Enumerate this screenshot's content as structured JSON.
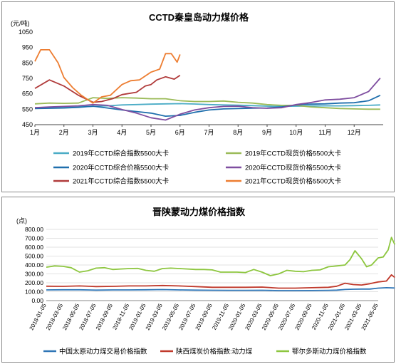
{
  "chart_data": [
    {
      "type": "line",
      "title": "CCTD秦皇岛动力煤价格",
      "ylabel": "(元/吨)",
      "ylim": [
        450,
        1050
      ],
      "yticks": [
        450,
        550,
        650,
        750,
        850,
        950,
        1050
      ],
      "xlim": [
        1,
        13
      ],
      "xticks": [
        {
          "v": 1,
          "label": "1月"
        },
        {
          "v": 2,
          "label": "2月"
        },
        {
          "v": 3,
          "label": "3月"
        },
        {
          "v": 4,
          "label": "4月"
        },
        {
          "v": 5,
          "label": "5月"
        },
        {
          "v": 6,
          "label": "6月"
        },
        {
          "v": 7,
          "label": "7月"
        },
        {
          "v": 8,
          "label": "8月"
        },
        {
          "v": 9,
          "label": "9月"
        },
        {
          "v": 10,
          "label": "10月"
        },
        {
          "v": 11,
          "label": "11月"
        },
        {
          "v": 12,
          "label": "12月"
        }
      ],
      "grid": false,
      "legend": "bottom",
      "series": [
        {
          "name": "2019年CCTD综合指数5500大卡",
          "color": "#4bacc6",
          "x": [
            1,
            1.5,
            2,
            2.5,
            3,
            3.5,
            4,
            4.5,
            5,
            5.5,
            6,
            6.5,
            7,
            7.5,
            8,
            8.5,
            9,
            9.5,
            10,
            10.5,
            11,
            11.5,
            12,
            12.5,
            12.9
          ],
          "y": [
            560,
            562,
            565,
            566,
            568,
            572,
            578,
            580,
            583,
            585,
            586,
            584,
            580,
            578,
            576,
            573,
            570,
            568,
            570,
            571,
            572,
            572,
            573,
            575,
            578
          ]
        },
        {
          "name": "2019年CCTD现货价格5500大卡",
          "color": "#9bbb59",
          "x": [
            1,
            1.5,
            2,
            2.5,
            3,
            3.5,
            4,
            4.5,
            5,
            5.5,
            6,
            6.5,
            7,
            7.5,
            8,
            8.5,
            9,
            9.5,
            10,
            10.5,
            11,
            11.5,
            12,
            12.5,
            12.9
          ],
          "y": [
            585,
            590,
            588,
            590,
            625,
            620,
            625,
            622,
            618,
            618,
            605,
            600,
            600,
            603,
            595,
            590,
            580,
            575,
            575,
            565,
            560,
            555,
            552,
            550,
            550
          ]
        },
        {
          "name": "2020年CCTD综合价格5500大卡",
          "color": "#1f6fad",
          "x": [
            1,
            1.5,
            2,
            2.5,
            3,
            3.5,
            4,
            4.5,
            5,
            5.5,
            6,
            6.5,
            7,
            7.5,
            8,
            8.5,
            9,
            9.5,
            10,
            10.5,
            11,
            11.5,
            12,
            12.5,
            12.9
          ],
          "y": [
            555,
            556,
            558,
            562,
            570,
            558,
            545,
            535,
            525,
            505,
            510,
            530,
            545,
            552,
            555,
            557,
            558,
            565,
            578,
            583,
            585,
            590,
            592,
            605,
            640
          ]
        },
        {
          "name": "2020年CCTD现货价格5500大卡",
          "color": "#7f4ea0",
          "x": [
            1,
            1.5,
            2,
            2.5,
            3,
            3.5,
            4,
            4.5,
            5,
            5.5,
            6,
            6.5,
            7,
            7.5,
            8,
            8.5,
            9,
            9.5,
            10,
            10.5,
            11,
            11.5,
            12,
            12.5,
            12.9
          ],
          "y": [
            560,
            565,
            568,
            572,
            580,
            575,
            548,
            525,
            495,
            480,
            518,
            545,
            560,
            568,
            570,
            560,
            556,
            560,
            580,
            593,
            610,
            615,
            625,
            665,
            752
          ]
        },
        {
          "name": "2021年CCTD综合指数5500大卡",
          "color": "#b03a3a",
          "x": [
            1,
            1.5,
            2,
            2.5,
            3,
            3.3,
            3.7,
            4,
            4.5,
            4.8,
            5,
            5.2,
            5.5,
            5.8,
            6
          ],
          "y": [
            685,
            740,
            700,
            640,
            595,
            600,
            620,
            645,
            660,
            700,
            710,
            740,
            760,
            745,
            770
          ]
        },
        {
          "name": "2021年CCTD现货价格5500大卡",
          "color": "#ed7d31",
          "x": [
            1,
            1.2,
            1.5,
            1.8,
            2,
            2.3,
            2.6,
            3,
            3.3,
            3.6,
            4,
            4.3,
            4.6,
            5,
            5.3,
            5.5,
            5.7,
            5.9,
            6
          ],
          "y": [
            860,
            935,
            935,
            850,
            755,
            690,
            640,
            590,
            630,
            640,
            710,
            735,
            740,
            790,
            810,
            910,
            910,
            855,
            905
          ]
        }
      ]
    },
    {
      "type": "line",
      "title": "晋陕蒙动力煤价格指数",
      "ylabel": "(点)",
      "ylim": [
        0,
        800
      ],
      "yticks": [
        "0.00",
        "100.00",
        "200.00",
        "300.00",
        "400.00",
        "500.00",
        "600.00",
        "700.00",
        "800.00"
      ],
      "categories": [
        "2018-01-05",
        "2018-03-05",
        "2018-05-05",
        "2018-07-05",
        "2018-09-05",
        "2018-11-05",
        "2019-01-05",
        "2019-03-05",
        "2019-05-05",
        "2019-07-05",
        "2019-09-05",
        "2019-11-05",
        "2020-01-05",
        "2020-03-05",
        "2020-05-05",
        "2020-07-05",
        "2020-09-05",
        "2020-11-05",
        "2021-01-05",
        "2021-03-05",
        "2021-05-05"
      ],
      "grid": true,
      "legend": "bottom",
      "series": [
        {
          "name": "中国太原动力煤交易价格指数",
          "color": "#2e75b6",
          "x": [
            0,
            1,
            2,
            3,
            4,
            5,
            6,
            7,
            8,
            9,
            10,
            11,
            12,
            13,
            14,
            15,
            16,
            17,
            17.5,
            18,
            18.5,
            19,
            19.5,
            20,
            20.5,
            21
          ],
          "y": [
            120,
            122,
            122,
            118,
            120,
            120,
            122,
            124,
            120,
            118,
            116,
            115,
            115,
            116,
            112,
            112,
            113,
            115,
            118,
            125,
            128,
            130,
            130,
            140,
            145,
            142
          ]
        },
        {
          "name": "陕西煤炭价格指数:动力煤",
          "color": "#c0392b",
          "x": [
            0,
            1,
            2,
            3,
            4,
            5,
            6,
            7,
            8,
            9,
            10,
            11,
            12,
            13,
            14,
            15,
            16,
            17,
            17.5,
            18,
            18.5,
            19,
            19.5,
            20,
            20.5,
            20.8,
            21
          ],
          "y": [
            162,
            160,
            165,
            158,
            160,
            165,
            165,
            170,
            165,
            158,
            150,
            150,
            150,
            152,
            140,
            140,
            145,
            150,
            162,
            195,
            180,
            175,
            190,
            210,
            220,
            290,
            260
          ]
        },
        {
          "name": "鄂尔多斯动力煤价格指数",
          "color": "#8dc63f",
          "x": [
            0,
            0.5,
            1,
            1.5,
            2,
            2.5,
            3,
            3.5,
            4,
            4.5,
            5,
            5.5,
            6,
            6.5,
            7,
            7.5,
            8,
            8.5,
            9,
            9.5,
            10,
            10.5,
            11,
            11.5,
            12,
            12.5,
            13,
            13.5,
            14,
            14.5,
            15,
            15.5,
            16,
            16.5,
            17,
            17.5,
            18,
            18.3,
            18.6,
            19,
            19.3,
            19.6,
            20,
            20.3,
            20.6,
            20.8,
            21
          ],
          "y": [
            375,
            390,
            385,
            370,
            320,
            335,
            365,
            370,
            350,
            355,
            360,
            362,
            340,
            330,
            360,
            365,
            360,
            355,
            350,
            350,
            345,
            320,
            320,
            320,
            315,
            350,
            320,
            280,
            300,
            340,
            330,
            325,
            340,
            345,
            380,
            390,
            400,
            460,
            560,
            470,
            380,
            400,
            480,
            490,
            570,
            710,
            630
          ]
        }
      ]
    }
  ]
}
